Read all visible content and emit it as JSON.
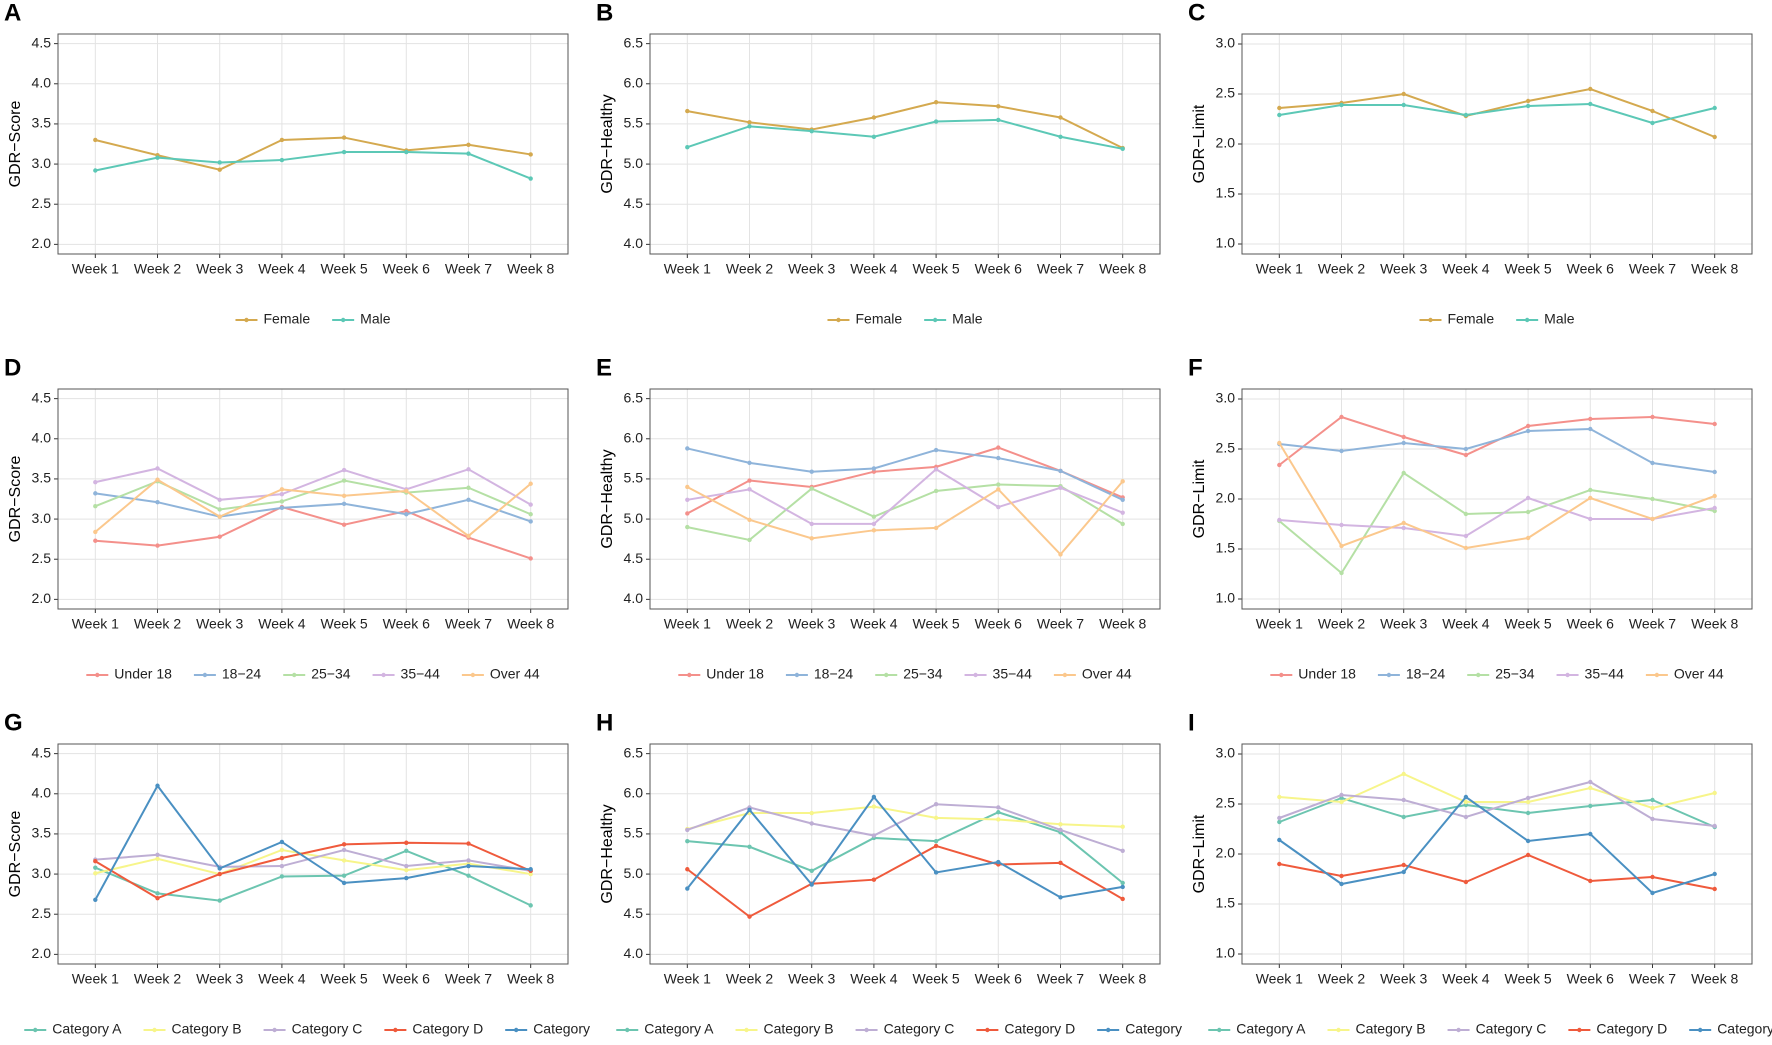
{
  "chart_data": [
    {
      "type": "line",
      "panel": "A",
      "ylabel": "GDR−Score",
      "categories": [
        "Week 1",
        "Week 2",
        "Week 3",
        "Week 4",
        "Week 5",
        "Week 6",
        "Week 7",
        "Week 8"
      ],
      "ylim": [
        1.88,
        4.62
      ],
      "yticks": [
        2.0,
        2.5,
        3.0,
        3.5,
        4.0,
        4.5
      ],
      "grid": true,
      "legend": "bottom",
      "series": [
        {
          "name": "Female",
          "color": "#D4A94F",
          "values": [
            3.3,
            3.11,
            2.93,
            3.3,
            3.33,
            3.17,
            3.24,
            3.12
          ]
        },
        {
          "name": "Male",
          "color": "#5CC8B6",
          "values": [
            2.92,
            3.08,
            3.02,
            3.05,
            3.15,
            3.15,
            3.13,
            2.82
          ]
        }
      ]
    },
    {
      "type": "line",
      "panel": "B",
      "ylabel": "GDR−Healthy",
      "categories": [
        "Week 1",
        "Week 2",
        "Week 3",
        "Week 4",
        "Week 5",
        "Week 6",
        "Week 7",
        "Week 8"
      ],
      "ylim": [
        3.88,
        6.62
      ],
      "yticks": [
        4.0,
        4.5,
        5.0,
        5.5,
        6.0,
        6.5
      ],
      "grid": true,
      "legend": "bottom",
      "series": [
        {
          "name": "Female",
          "color": "#D4A94F",
          "values": [
            5.66,
            5.52,
            5.43,
            5.58,
            5.77,
            5.72,
            5.58,
            5.2
          ]
        },
        {
          "name": "Male",
          "color": "#5CC8B6",
          "values": [
            5.21,
            5.47,
            5.41,
            5.34,
            5.53,
            5.55,
            5.34,
            5.19
          ]
        }
      ]
    },
    {
      "type": "line",
      "panel": "C",
      "ylabel": "GDR−Limit",
      "categories": [
        "Week 1",
        "Week 2",
        "Week 3",
        "Week 4",
        "Week 5",
        "Week 6",
        "Week 7",
        "Week 8"
      ],
      "ylim": [
        0.9,
        3.1
      ],
      "yticks": [
        1.0,
        1.5,
        2.0,
        2.5,
        3.0
      ],
      "grid": true,
      "legend": "bottom",
      "series": [
        {
          "name": "Female",
          "color": "#D4A94F",
          "values": [
            2.36,
            2.41,
            2.5,
            2.28,
            2.43,
            2.55,
            2.33,
            2.07
          ]
        },
        {
          "name": "Male",
          "color": "#5CC8B6",
          "values": [
            2.29,
            2.39,
            2.39,
            2.29,
            2.38,
            2.4,
            2.21,
            2.36
          ]
        }
      ]
    },
    {
      "type": "line",
      "panel": "D",
      "ylabel": "GDR−Score",
      "categories": [
        "Week 1",
        "Week 2",
        "Week 3",
        "Week 4",
        "Week 5",
        "Week 6",
        "Week 7",
        "Week 8"
      ],
      "ylim": [
        1.88,
        4.62
      ],
      "yticks": [
        2.0,
        2.5,
        3.0,
        3.5,
        4.0,
        4.5
      ],
      "grid": true,
      "legend": "bottom",
      "series": [
        {
          "name": "Under 18",
          "color": "#F4908B",
          "values": [
            2.73,
            2.67,
            2.78,
            3.15,
            2.93,
            3.1,
            2.77,
            2.51
          ]
        },
        {
          "name": "18−24",
          "color": "#8FB4DA",
          "values": [
            3.32,
            3.21,
            3.03,
            3.14,
            3.19,
            3.06,
            3.24,
            2.97
          ]
        },
        {
          "name": "25−34",
          "color": "#B5E0A5",
          "values": [
            3.16,
            3.47,
            3.12,
            3.22,
            3.48,
            3.33,
            3.39,
            3.06
          ]
        },
        {
          "name": "35−44",
          "color": "#D3B5E1",
          "values": [
            3.46,
            3.63,
            3.24,
            3.31,
            3.61,
            3.37,
            3.62,
            3.18
          ]
        },
        {
          "name": "Over 44",
          "color": "#FBC88D",
          "values": [
            2.84,
            3.49,
            3.03,
            3.37,
            3.29,
            3.35,
            2.79,
            3.44
          ]
        }
      ]
    },
    {
      "type": "line",
      "panel": "E",
      "ylabel": "GDR−Healthy",
      "categories": [
        "Week 1",
        "Week 2",
        "Week 3",
        "Week 4",
        "Week 5",
        "Week 6",
        "Week 7",
        "Week 8"
      ],
      "ylim": [
        3.88,
        6.62
      ],
      "yticks": [
        4.0,
        4.5,
        5.0,
        5.5,
        6.0,
        6.5
      ],
      "grid": true,
      "legend": "bottom",
      "series": [
        {
          "name": "Under 18",
          "color": "#F4908B",
          "values": [
            5.07,
            5.48,
            5.4,
            5.59,
            5.65,
            5.89,
            5.6,
            5.27
          ]
        },
        {
          "name": "18−24",
          "color": "#8FB4DA",
          "values": [
            5.88,
            5.7,
            5.59,
            5.63,
            5.86,
            5.76,
            5.6,
            5.24
          ]
        },
        {
          "name": "25−34",
          "color": "#B5E0A5",
          "values": [
            4.9,
            4.74,
            5.38,
            5.03,
            5.35,
            5.43,
            5.41,
            4.94
          ]
        },
        {
          "name": "35−44",
          "color": "#D3B5E1",
          "values": [
            5.24,
            5.37,
            4.94,
            4.94,
            5.62,
            5.15,
            5.39,
            5.08
          ]
        },
        {
          "name": "Over 44",
          "color": "#FBC88D",
          "values": [
            5.4,
            4.99,
            4.76,
            4.86,
            4.89,
            5.37,
            4.56,
            5.47
          ]
        }
      ]
    },
    {
      "type": "line",
      "panel": "F",
      "ylabel": "GDR−Limit",
      "categories": [
        "Week 1",
        "Week 2",
        "Week 3",
        "Week 4",
        "Week 5",
        "Week 6",
        "Week 7",
        "Week 8"
      ],
      "ylim": [
        0.9,
        3.1
      ],
      "yticks": [
        1.0,
        1.5,
        2.0,
        2.5,
        3.0
      ],
      "grid": true,
      "legend": "bottom",
      "series": [
        {
          "name": "Under 18",
          "color": "#F4908B",
          "values": [
            2.34,
            2.82,
            2.62,
            2.44,
            2.73,
            2.8,
            2.82,
            2.75
          ]
        },
        {
          "name": "18−24",
          "color": "#8FB4DA",
          "values": [
            2.55,
            2.48,
            2.56,
            2.5,
            2.68,
            2.7,
            2.36,
            2.27
          ]
        },
        {
          "name": "25−34",
          "color": "#B5E0A5",
          "values": [
            1.78,
            1.26,
            2.26,
            1.85,
            1.87,
            2.09,
            2.0,
            1.88
          ]
        },
        {
          "name": "35−44",
          "color": "#D3B5E1",
          "values": [
            1.79,
            1.74,
            1.71,
            1.63,
            2.01,
            1.8,
            1.8,
            1.91
          ]
        },
        {
          "name": "Over 44",
          "color": "#FBC88D",
          "values": [
            2.56,
            1.53,
            1.76,
            1.51,
            1.61,
            2.01,
            1.8,
            2.03
          ]
        }
      ]
    },
    {
      "type": "line",
      "panel": "G",
      "ylabel": "GDR−Score",
      "categories": [
        "Week 1",
        "Week 2",
        "Week 3",
        "Week 4",
        "Week 5",
        "Week 6",
        "Week 7",
        "Week 8"
      ],
      "ylim": [
        1.88,
        4.62
      ],
      "yticks": [
        2.0,
        2.5,
        3.0,
        3.5,
        4.0,
        4.5
      ],
      "grid": true,
      "legend": "bottom",
      "series": [
        {
          "name": "Category A",
          "color": "#6CC5B0",
          "values": [
            3.08,
            2.76,
            2.67,
            2.97,
            2.98,
            3.29,
            2.98,
            2.61
          ]
        },
        {
          "name": "Category B",
          "color": "#F7F58A",
          "values": [
            3.01,
            3.19,
            3.0,
            3.3,
            3.17,
            3.05,
            3.13,
            3.0
          ]
        },
        {
          "name": "Category C",
          "color": "#BEAED4",
          "values": [
            3.18,
            3.24,
            3.09,
            3.1,
            3.3,
            3.1,
            3.17,
            3.04
          ]
        },
        {
          "name": "Category D",
          "color": "#EF5A3C",
          "values": [
            3.16,
            2.7,
            3.0,
            3.2,
            3.37,
            3.39,
            3.38,
            3.04
          ]
        },
        {
          "name": "Category",
          "color": "#4A90C2",
          "values": [
            2.68,
            4.1,
            3.07,
            3.4,
            2.89,
            2.95,
            3.1,
            3.06
          ]
        }
      ]
    },
    {
      "type": "line",
      "panel": "H",
      "ylabel": "GDR−Healthy",
      "categories": [
        "Week 1",
        "Week 2",
        "Week 3",
        "Week 4",
        "Week 5",
        "Week 6",
        "Week 7",
        "Week 8"
      ],
      "ylim": [
        3.88,
        6.62
      ],
      "yticks": [
        4.0,
        4.5,
        5.0,
        5.5,
        6.0,
        6.5
      ],
      "grid": true,
      "legend": "bottom",
      "series": [
        {
          "name": "Category A",
          "color": "#6CC5B0",
          "values": [
            5.41,
            5.34,
            5.04,
            5.45,
            5.41,
            5.77,
            5.52,
            4.89
          ]
        },
        {
          "name": "Category B",
          "color": "#F7F58A",
          "values": [
            5.56,
            5.76,
            5.76,
            5.84,
            5.7,
            5.68,
            5.62,
            5.59
          ]
        },
        {
          "name": "Category C",
          "color": "#BEAED4",
          "values": [
            5.55,
            5.83,
            5.63,
            5.48,
            5.87,
            5.83,
            5.55,
            5.29
          ]
        },
        {
          "name": "Category D",
          "color": "#EF5A3C",
          "values": [
            5.06,
            4.47,
            4.88,
            4.93,
            5.35,
            5.12,
            5.14,
            4.69
          ]
        },
        {
          "name": "Category",
          "color": "#4A90C2",
          "values": [
            4.82,
            5.8,
            4.87,
            5.96,
            5.02,
            5.15,
            4.71,
            4.84
          ]
        }
      ]
    },
    {
      "type": "line",
      "panel": "I",
      "ylabel": "GDR−Limit",
      "categories": [
        "Week 1",
        "Week 2",
        "Week 3",
        "Week 4",
        "Week 5",
        "Week 6",
        "Week 7",
        "Week 8"
      ],
      "ylim": [
        0.9,
        3.1
      ],
      "yticks": [
        1.0,
        1.5,
        2.0,
        2.5,
        3.0
      ],
      "grid": true,
      "legend": "bottom",
      "series": [
        {
          "name": "Category A",
          "color": "#6CC5B0",
          "values": [
            2.32,
            2.56,
            2.37,
            2.49,
            2.41,
            2.48,
            2.54,
            2.27
          ]
        },
        {
          "name": "Category B",
          "color": "#F7F58A",
          "values": [
            2.57,
            2.52,
            2.8,
            2.52,
            2.52,
            2.66,
            2.46,
            2.61
          ]
        },
        {
          "name": "Category C",
          "color": "#BEAED4",
          "values": [
            2.36,
            2.59,
            2.54,
            2.37,
            2.56,
            2.72,
            2.35,
            2.28
          ]
        },
        {
          "name": "Category D",
          "color": "#EF5A3C",
          "values": [
            1.9,
            1.78,
            1.89,
            1.72,
            1.99,
            1.73,
            1.77,
            1.65
          ]
        },
        {
          "name": "Category",
          "color": "#4A90C2",
          "values": [
            2.14,
            1.7,
            1.82,
            2.57,
            2.13,
            2.2,
            1.61,
            1.8
          ]
        }
      ]
    }
  ]
}
